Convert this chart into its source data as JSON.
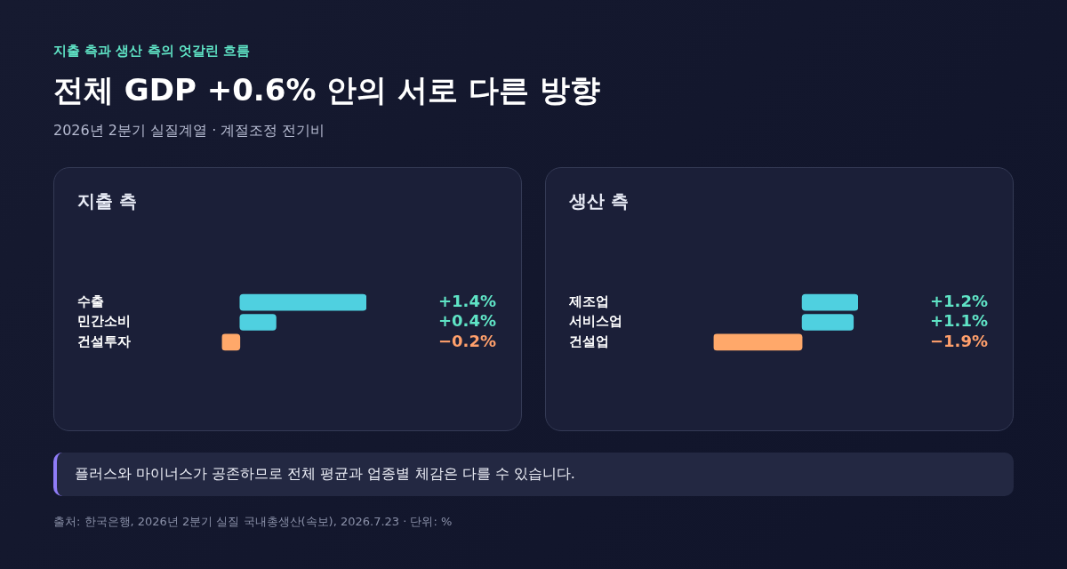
{
  "chart_data": [
    {
      "type": "other",
      "title": "전체 GDP +0.6% 안의 서로 다른 방향",
      "subtitle": "2026년 2분기 실질계열 · 계절조정 전기비",
      "annotations": [
        "지출 측과 생산 측의 엇갈린 흐름"
      ]
    },
    {
      "type": "bar",
      "orientation": "horizontal",
      "title": "지출 측",
      "categories": [
        "수출",
        "민간소비",
        "건설투자"
      ],
      "values": [
        1.4,
        0.4,
        -0.2
      ],
      "colors": [
        "#4fd0e0",
        "#4fd0e0",
        "#ffa86a"
      ],
      "value_labels": [
        "+1.4%",
        "+0.4%",
        "−0.2%"
      ]
    },
    {
      "type": "bar",
      "orientation": "horizontal",
      "title": "생산 측",
      "categories": [
        "제조업",
        "서비스업",
        "건설업"
      ],
      "values": [
        1.2,
        1.1,
        -1.9
      ],
      "colors": [
        "#4fd0e0",
        "#4fd0e0",
        "#ffa86a"
      ],
      "value_labels": [
        "+1.2%",
        "+1.1%",
        "−1.9%"
      ]
    },
    {
      "type": "other",
      "annotations": [
        "플러스와 마이너스가 공존하므로 전체 평균과 업종별 체감은 다를 수 있습니다.",
        "출처: 한국은행, 2026년 2분기 실질 국내총생산(속보), 2026.7.23 · 단위: %"
      ]
    }
  ]
}
